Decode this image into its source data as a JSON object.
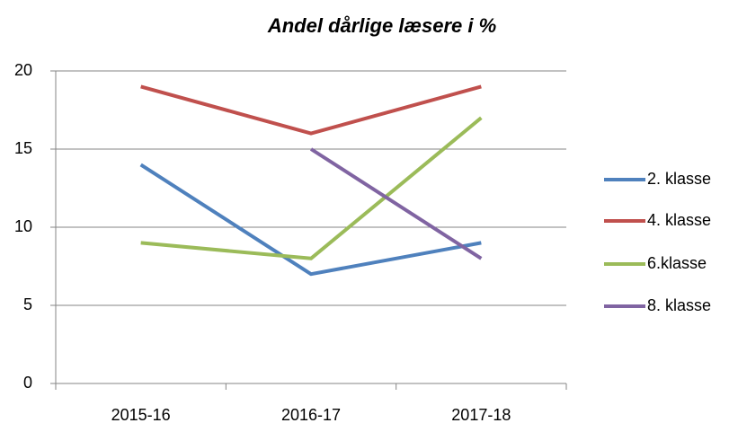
{
  "chart_data": {
    "type": "line",
    "title": "Andel dårlige læsere i %",
    "categories": [
      "2015-16",
      "2016-17",
      "2017-18"
    ],
    "series": [
      {
        "name": "2. klasse",
        "color": "#4f81bd",
        "values": [
          14,
          7,
          9
        ]
      },
      {
        "name": "4. klasse",
        "color": "#c0504d",
        "values": [
          19,
          16,
          19
        ]
      },
      {
        "name": "6.klasse",
        "color": "#9bbb59",
        "values": [
          9,
          8,
          17
        ]
      },
      {
        "name": "8. klasse",
        "color": "#8064a2",
        "values": [
          null,
          15,
          8
        ]
      }
    ],
    "ylim": [
      0,
      20
    ],
    "yticks": [
      0,
      5,
      10,
      15,
      20
    ],
    "grid": true,
    "legend": "right"
  }
}
